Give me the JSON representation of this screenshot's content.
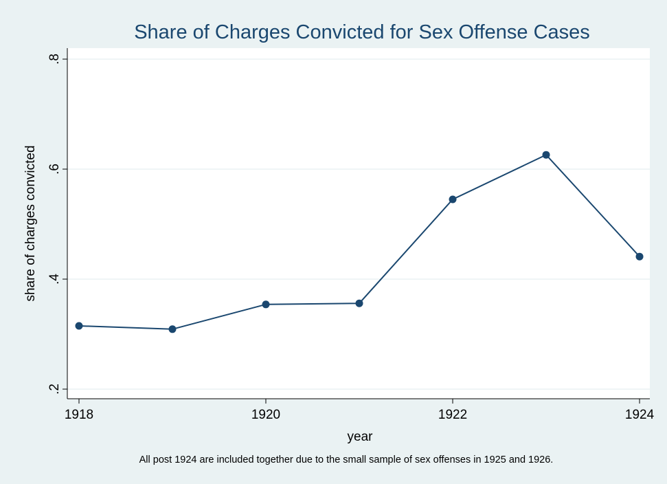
{
  "chart_data": {
    "type": "line",
    "title": "Share of Charges Convicted for Sex Offense Cases",
    "y_label": "share of charges convicted",
    "x_label": "year",
    "note": "All post 1924 are included together due to the small sample of sex offenses in 1925 and 1926.",
    "x": [
      1918,
      1919,
      1920,
      1921,
      1922,
      1923,
      1924
    ],
    "series": [
      {
        "name": "share of charges convicted",
        "color": "#1a476f",
        "values": [
          0.315,
          0.309,
          0.354,
          0.356,
          0.545,
          0.626,
          0.441
        ]
      }
    ],
    "xlim": [
      1917.875,
      1924.11
    ],
    "xticks": [
      1918,
      1920,
      1922,
      1924
    ],
    "ylim": [
      0.1825,
      0.82
    ],
    "yticks": [
      {
        "value": 0.2,
        "label": ".2"
      },
      {
        "value": 0.4,
        "label": ".4"
      },
      {
        "value": 0.6,
        "label": ".6"
      },
      {
        "value": 0.8,
        "label": ".8"
      }
    ],
    "grid": true
  }
}
